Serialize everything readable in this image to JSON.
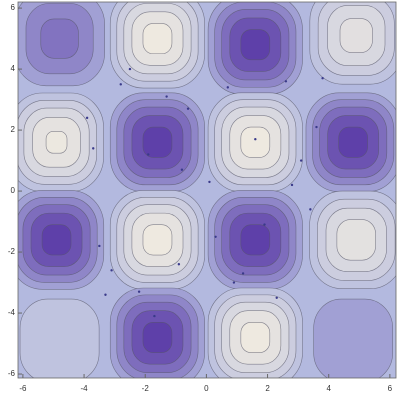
{
  "chart_data": {
    "type": "contour",
    "xlim": [
      -6.16,
      6.2
    ],
    "ylim": [
      -6.13,
      6.2
    ],
    "xticks": [
      -6,
      -4,
      -2,
      0,
      2,
      4,
      6
    ],
    "yticks": [
      -6,
      -4,
      -2,
      0,
      2,
      4,
      6
    ],
    "levels": [
      -0.9,
      -0.7,
      -0.5,
      -0.3,
      -0.1,
      0.1,
      0.3,
      0.5,
      0.7,
      0.9
    ],
    "colors": {
      "low": "#5a3aa6",
      "mid": "#b3b9df",
      "high": "#f1ece0",
      "line": "#555566",
      "point": "#3a3a8a"
    },
    "cells": [
      {
        "x": -4.8,
        "y": 5.0,
        "value": -0.6
      },
      {
        "x": -1.6,
        "y": 5.0,
        "value": 1
      },
      {
        "x": 1.6,
        "y": 4.8,
        "value": -1
      },
      {
        "x": 4.9,
        "y": 5.1,
        "value": 0.8
      },
      {
        "x": -4.9,
        "y": 1.6,
        "value": 0.95
      },
      {
        "x": -1.6,
        "y": 1.6,
        "value": -1
      },
      {
        "x": 1.6,
        "y": 1.6,
        "value": 1
      },
      {
        "x": 4.8,
        "y": 1.6,
        "value": -1
      },
      {
        "x": -4.9,
        "y": -1.6,
        "value": -1
      },
      {
        "x": -1.6,
        "y": -1.6,
        "value": 1
      },
      {
        "x": 1.6,
        "y": -1.6,
        "value": -1
      },
      {
        "x": 4.9,
        "y": -1.6,
        "value": 0.85
      },
      {
        "x": -4.8,
        "y": -4.9,
        "value": 0.3
      },
      {
        "x": -1.6,
        "y": -4.8,
        "value": -1
      },
      {
        "x": 1.6,
        "y": -4.8,
        "value": 1
      },
      {
        "x": 4.8,
        "y": -4.9,
        "value": -0.3
      }
    ],
    "points": {
      "x": [
        -3.9,
        -3.7,
        -3.5,
        -3.1,
        -2.8,
        -2.2,
        -1.9,
        -1.3,
        -0.9,
        -0.6,
        0.1,
        0.3,
        0.7,
        1.2,
        1.6,
        2.3,
        2.6,
        3.1,
        3.4,
        3.6,
        -3.3,
        -2.5,
        -1.7,
        0.9,
        2.8,
        3.8,
        -0.8,
        1.9
      ],
      "y": [
        2.4,
        1.4,
        -1.8,
        -2.6,
        3.5,
        -3.3,
        1.2,
        3.1,
        -2.4,
        2.7,
        0.3,
        -1.5,
        3.4,
        -2.7,
        1.7,
        -3.5,
        3.6,
        1.0,
        -0.6,
        2.1,
        -3.4,
        4.0,
        -4.1,
        -3.0,
        0.2,
        3.7,
        0.7,
        -1.1
      ]
    }
  }
}
